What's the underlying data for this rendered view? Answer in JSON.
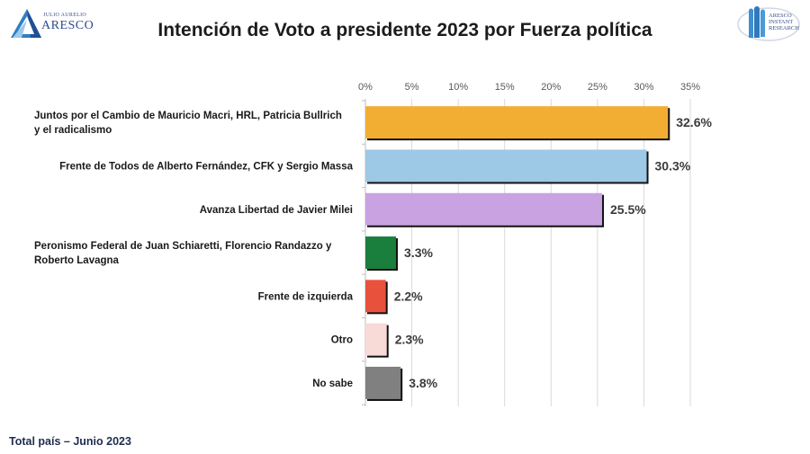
{
  "header": {
    "logo_left": {
      "small_text": "JULIO AURELIO",
      "brand_text": "ARESCO"
    },
    "logo_right": {
      "lines": [
        "ARESCO",
        "INSTANT",
        "RESEARCH"
      ]
    }
  },
  "footer": {
    "text": "Total país – Junio 2023"
  },
  "chart_data": {
    "type": "bar",
    "orientation": "horizontal",
    "title": "Intención de Voto a presidente 2023 por Fuerza política",
    "xlabel": "",
    "ylabel": "",
    "xlim": [
      0,
      35
    ],
    "x_ticks": [
      "0%",
      "5%",
      "10%",
      "15%",
      "20%",
      "25%",
      "30%",
      "35%"
    ],
    "x_tick_values": [
      0,
      5,
      10,
      15,
      20,
      25,
      30,
      35
    ],
    "grid": true,
    "axis_position": "top",
    "categories": [
      [
        "Juntos por el Cambio de Mauricio Macri, HRL, Patricia Bullrich",
        "y el radicalismo"
      ],
      [
        "Frente de Todos de Alberto Fernández, CFK y Sergio Massa"
      ],
      [
        "Avanza Libertad de Javier Milei"
      ],
      [
        "Peronismo Federal de Juan Schiaretti, Florencio Randazzo y",
        "Roberto Lavagna"
      ],
      [
        "Frente de izquierda"
      ],
      [
        "Otro"
      ],
      [
        "No sabe"
      ]
    ],
    "values": [
      32.6,
      30.3,
      25.5,
      3.3,
      2.2,
      2.3,
      3.8
    ],
    "data_labels": [
      "32.6%",
      "30.3%",
      "25.5%",
      "3.3%",
      "2.2%",
      "2.3%",
      "3.8%"
    ],
    "colors": [
      "#F2AD33",
      "#9DC8E6",
      "#C9A2E2",
      "#1A7F3C",
      "#E8523C",
      "#F8DAD6",
      "#808080"
    ]
  }
}
